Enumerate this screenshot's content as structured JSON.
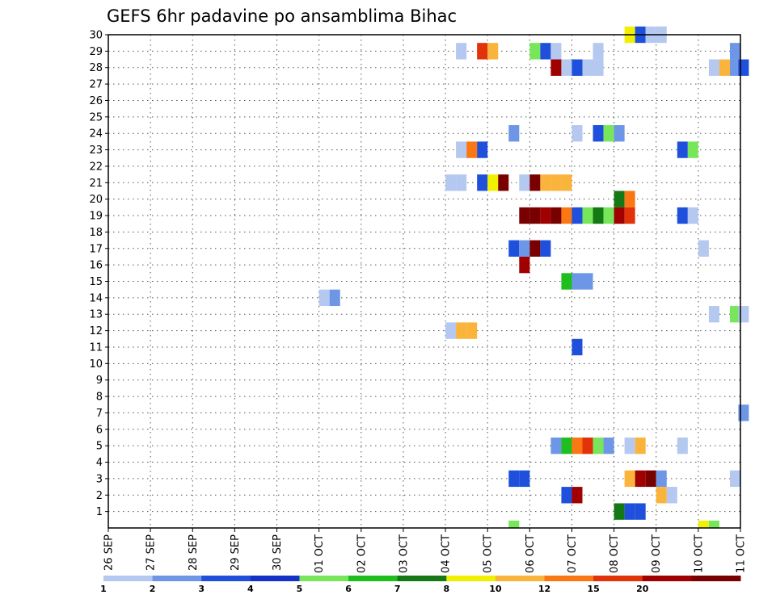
{
  "chart_data": {
    "type": "heatmap",
    "title": "GEFS 6hr padavine po ansamblima Bihac",
    "xlabel": "",
    "ylabel": "",
    "x_ticks": [
      "26 SEP",
      "27 SEP",
      "28 SEP",
      "29 SEP",
      "30 SEP",
      "01 OCT",
      "02 OCT",
      "03 OCT",
      "04 OCT",
      "05 OCT",
      "06 OCT",
      "07 OCT",
      "08 OCT",
      "09 OCT",
      "10 OCT",
      "11 OCT"
    ],
    "y_ticks": [
      1,
      2,
      3,
      4,
      5,
      6,
      7,
      8,
      9,
      10,
      11,
      12,
      13,
      14,
      15,
      16,
      17,
      18,
      19,
      20,
      21,
      22,
      23,
      24,
      25,
      26,
      27,
      28,
      29,
      30
    ],
    "ylim": [
      0,
      30
    ],
    "xlim_days": [
      0,
      15
    ],
    "grid": true,
    "legend": {
      "position": "bottom",
      "labels": [
        "1",
        "2",
        "3",
        "4",
        "5",
        "6",
        "7",
        "8",
        "10",
        "12",
        "15",
        "20"
      ],
      "colors": [
        "#b4c8f0",
        "#6e96e6",
        "#1e50dc",
        "#1432c8",
        "#78e65a",
        "#1ebe1e",
        "#147814",
        "#f0f000",
        "#fab43c",
        "#fa7814",
        "#e1320a",
        "#a00000",
        "#780000"
      ]
    },
    "cells": [
      {
        "m": 30,
        "x": [
          12.25
        ],
        "c": 7
      },
      {
        "m": 30,
        "x": [
          12.5
        ],
        "c": 2
      },
      {
        "m": 30,
        "x": [
          12.75,
          13.0
        ],
        "c": 0
      },
      {
        "m": 29,
        "x": [
          8.25
        ],
        "c": 0
      },
      {
        "m": 29,
        "x": [
          8.75
        ],
        "c": 10
      },
      {
        "m": 29,
        "x": [
          9.0
        ],
        "c": 8
      },
      {
        "m": 29,
        "x": [
          10.0
        ],
        "c": 4
      },
      {
        "m": 29,
        "x": [
          10.25
        ],
        "c": 2
      },
      {
        "m": 29,
        "x": [
          10.5
        ],
        "c": 0
      },
      {
        "m": 29,
        "x": [
          11.5
        ],
        "c": 0
      },
      {
        "m": 29,
        "x": [
          14.75
        ],
        "c": 1
      },
      {
        "m": 28,
        "x": [
          10.5
        ],
        "c": 11
      },
      {
        "m": 28,
        "x": [
          10.75
        ],
        "c": 0
      },
      {
        "m": 28,
        "x": [
          11.0
        ],
        "c": 2
      },
      {
        "m": 28,
        "x": [
          11.25,
          11.5
        ],
        "c": 0
      },
      {
        "m": 28,
        "x": [
          14.25
        ],
        "c": 0
      },
      {
        "m": 28,
        "x": [
          14.5
        ],
        "c": 8
      },
      {
        "m": 28,
        "x": [
          14.75
        ],
        "c": 1
      },
      {
        "m": 28,
        "x": [
          14.95
        ],
        "c": 2
      },
      {
        "m": 24,
        "x": [
          9.5
        ],
        "c": 1
      },
      {
        "m": 24,
        "x": [
          11.0
        ],
        "c": 0
      },
      {
        "m": 24,
        "x": [
          11.5
        ],
        "c": 2
      },
      {
        "m": 24,
        "x": [
          11.75
        ],
        "c": 4
      },
      {
        "m": 24,
        "x": [
          12.0
        ],
        "c": 1
      },
      {
        "m": 23,
        "x": [
          8.25
        ],
        "c": 0
      },
      {
        "m": 23,
        "x": [
          8.5
        ],
        "c": 9
      },
      {
        "m": 23,
        "x": [
          8.75
        ],
        "c": 2
      },
      {
        "m": 23,
        "x": [
          13.5
        ],
        "c": 2
      },
      {
        "m": 23,
        "x": [
          13.75
        ],
        "c": 4
      },
      {
        "m": 21,
        "x": [
          8.0,
          8.25
        ],
        "c": 0
      },
      {
        "m": 21,
        "x": [
          8.75
        ],
        "c": 2
      },
      {
        "m": 21,
        "x": [
          9.0
        ],
        "c": 7
      },
      {
        "m": 21,
        "x": [
          9.25
        ],
        "c": 12
      },
      {
        "m": 21,
        "x": [
          9.75
        ],
        "c": 0
      },
      {
        "m": 21,
        "x": [
          10.0
        ],
        "c": 12
      },
      {
        "m": 21,
        "x": [
          10.25,
          10.5,
          10.75
        ],
        "c": 8
      },
      {
        "m": 20,
        "x": [
          12.0
        ],
        "c": 6
      },
      {
        "m": 20,
        "x": [
          12.25
        ],
        "c": 9
      },
      {
        "m": 19,
        "x": [
          9.75,
          10.0
        ],
        "c": 12
      },
      {
        "m": 19,
        "x": [
          10.25
        ],
        "c": 11
      },
      {
        "m": 19,
        "x": [
          10.5
        ],
        "c": 12
      },
      {
        "m": 19,
        "x": [
          10.75
        ],
        "c": 9
      },
      {
        "m": 19,
        "x": [
          11.0
        ],
        "c": 2
      },
      {
        "m": 19,
        "x": [
          11.25
        ],
        "c": 4
      },
      {
        "m": 19,
        "x": [
          11.5
        ],
        "c": 6
      },
      {
        "m": 19,
        "x": [
          11.75
        ],
        "c": 4
      },
      {
        "m": 19,
        "x": [
          12.0
        ],
        "c": 11
      },
      {
        "m": 19,
        "x": [
          12.25
        ],
        "c": 10
      },
      {
        "m": 19,
        "x": [
          13.5
        ],
        "c": 2
      },
      {
        "m": 19,
        "x": [
          13.75
        ],
        "c": 0
      },
      {
        "m": 17,
        "x": [
          9.5
        ],
        "c": 2
      },
      {
        "m": 17,
        "x": [
          9.75
        ],
        "c": 1
      },
      {
        "m": 17,
        "x": [
          10.0
        ],
        "c": 12
      },
      {
        "m": 17,
        "x": [
          10.25
        ],
        "c": 2
      },
      {
        "m": 17,
        "x": [
          14.0
        ],
        "c": 0
      },
      {
        "m": 16,
        "x": [
          9.75
        ],
        "c": 11
      },
      {
        "m": 15,
        "x": [
          10.75
        ],
        "c": 5
      },
      {
        "m": 15,
        "x": [
          11.0,
          11.25
        ],
        "c": 1
      },
      {
        "m": 14,
        "x": [
          5.0
        ],
        "c": 0
      },
      {
        "m": 14,
        "x": [
          5.25
        ],
        "c": 1
      },
      {
        "m": 13,
        "x": [
          14.25
        ],
        "c": 0
      },
      {
        "m": 13,
        "x": [
          14.75
        ],
        "c": 4
      },
      {
        "m": 13,
        "x": [
          14.95
        ],
        "c": 0
      },
      {
        "m": 12,
        "x": [
          8.0
        ],
        "c": 0
      },
      {
        "m": 12,
        "x": [
          8.25,
          8.5
        ],
        "c": 8
      },
      {
        "m": 11,
        "x": [
          11.0
        ],
        "c": 2
      },
      {
        "m": 7,
        "x": [
          14.95
        ],
        "c": 1
      },
      {
        "m": 5,
        "x": [
          10.5
        ],
        "c": 1
      },
      {
        "m": 5,
        "x": [
          10.75
        ],
        "c": 5
      },
      {
        "m": 5,
        "x": [
          11.0
        ],
        "c": 9
      },
      {
        "m": 5,
        "x": [
          11.25
        ],
        "c": 10
      },
      {
        "m": 5,
        "x": [
          11.5
        ],
        "c": 4
      },
      {
        "m": 5,
        "x": [
          11.75
        ],
        "c": 1
      },
      {
        "m": 5,
        "x": [
          12.25
        ],
        "c": 0
      },
      {
        "m": 5,
        "x": [
          12.5
        ],
        "c": 8
      },
      {
        "m": 5,
        "x": [
          13.5
        ],
        "c": 0
      },
      {
        "m": 3,
        "x": [
          9.5,
          9.75
        ],
        "c": 2
      },
      {
        "m": 3,
        "x": [
          12.25
        ],
        "c": 8
      },
      {
        "m": 3,
        "x": [
          12.5
        ],
        "c": 11
      },
      {
        "m": 3,
        "x": [
          12.75
        ],
        "c": 12
      },
      {
        "m": 3,
        "x": [
          13.0
        ],
        "c": 1
      },
      {
        "m": 3,
        "x": [
          14.75
        ],
        "c": 0
      },
      {
        "m": 2,
        "x": [
          10.75
        ],
        "c": 2
      },
      {
        "m": 2,
        "x": [
          11.0
        ],
        "c": 11
      },
      {
        "m": 2,
        "x": [
          13.0
        ],
        "c": 8
      },
      {
        "m": 2,
        "x": [
          13.25
        ],
        "c": 0
      },
      {
        "m": 1,
        "x": [
          12.0
        ],
        "c": 6
      },
      {
        "m": 1,
        "x": [
          12.25,
          12.5
        ],
        "c": 2
      },
      {
        "m": 0,
        "x": [
          9.5
        ],
        "c": 4
      },
      {
        "m": 0,
        "x": [
          14.0
        ],
        "c": 7
      },
      {
        "m": 0,
        "x": [
          14.25
        ],
        "c": 4
      }
    ]
  }
}
